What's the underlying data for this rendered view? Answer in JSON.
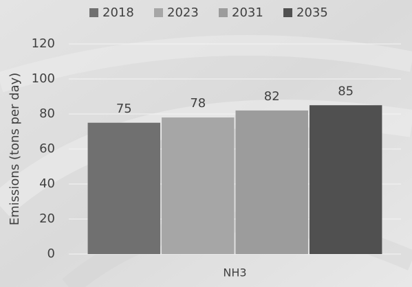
{
  "chart_data": {
    "type": "bar",
    "ylabel": "Emissions (tons per day)",
    "categories": [
      "NH3"
    ],
    "series": [
      {
        "name": "2018",
        "color": "#707070",
        "values": [
          75
        ]
      },
      {
        "name": "2023",
        "color": "#a6a6a6",
        "values": [
          78
        ]
      },
      {
        "name": "2031",
        "color": "#9c9c9c",
        "values": [
          82
        ]
      },
      {
        "name": "2035",
        "color": "#505050",
        "values": [
          85
        ]
      }
    ],
    "ylim": [
      0,
      120
    ],
    "yticks": [
      0,
      20,
      40,
      60,
      80,
      100,
      120
    ],
    "grid": true,
    "legend": "top"
  }
}
